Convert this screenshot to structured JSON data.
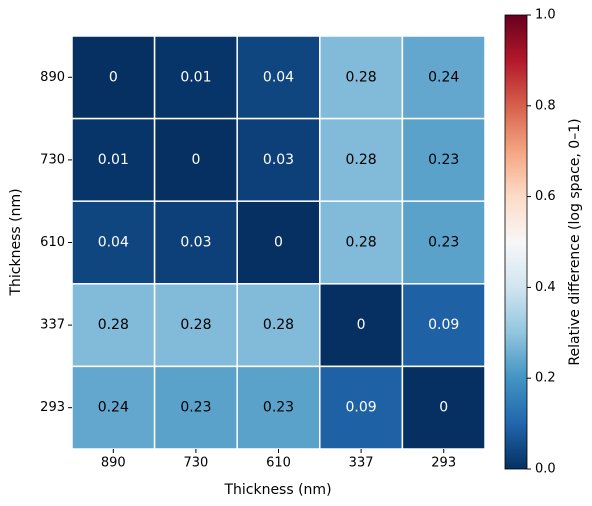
{
  "chart_data": {
    "type": "heatmap",
    "xlabel": "Thickness (nm)",
    "ylabel": "Thickness (nm)",
    "x_categories": [
      "890",
      "730",
      "610",
      "337",
      "293"
    ],
    "y_categories": [
      "890",
      "730",
      "610",
      "337",
      "293"
    ],
    "values": [
      [
        0,
        0.01,
        0.04,
        0.28,
        0.24
      ],
      [
        0.01,
        0,
        0.03,
        0.28,
        0.23
      ],
      [
        0.04,
        0.03,
        0,
        0.28,
        0.23
      ],
      [
        0.28,
        0.28,
        0.28,
        0,
        0.09
      ],
      [
        0.24,
        0.23,
        0.23,
        0.09,
        0
      ]
    ],
    "colormap": [
      "#053061",
      "#2166ac",
      "#4393c3",
      "#92c5de",
      "#d1e5f0",
      "#f7f7f7",
      "#fddbc7",
      "#f4a582",
      "#d6604d",
      "#b2182b",
      "#67001f"
    ],
    "clim": [
      0,
      1
    ],
    "colorbar_label": "Relative difference (log space, 0–1)",
    "colorbar_ticks": [
      {
        "value": 0,
        "label": "0.0"
      },
      0.2,
      0.4,
      0.6,
      0.8,
      {
        "value": 1,
        "label": "1.0"
      }
    ]
  }
}
